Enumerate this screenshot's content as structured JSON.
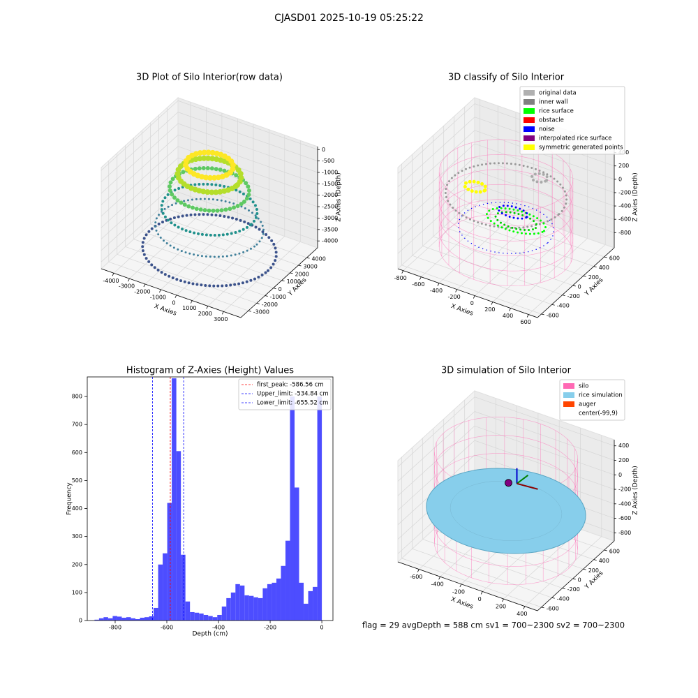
{
  "title": "CJASD01 2025-10-19 05:25:22",
  "chart_data": [
    {
      "type": "scatter3d",
      "title": "3D Plot of Silo Interior(row data)",
      "xlabel": "X Axies",
      "ylabel": "Y Axies",
      "zlabel": "Z Axies (Depth)",
      "xlim": [
        -4800,
        4100
      ],
      "ylim": [
        -3900,
        5300
      ],
      "zlim": [
        -4300,
        130
      ],
      "xticks": [
        -4000,
        -3000,
        -2000,
        -1000,
        0,
        1000,
        2000,
        3000
      ],
      "yticks": [
        -3000,
        -2000,
        -1000,
        0,
        1000,
        2000,
        3000,
        4000
      ],
      "zticks": [
        0,
        -500,
        -1000,
        -1500,
        -2000,
        -2500,
        -3000,
        -3500,
        -4000
      ]
    },
    {
      "type": "scatter3d",
      "title": "3D classify of Silo Interior",
      "xlabel": "X Axies",
      "ylabel": "Y Axies",
      "zlabel": "Z Axies (Depth)",
      "xlim": [
        -860,
        700
      ],
      "ylim": [
        -675,
        790
      ],
      "zlim": [
        -1027,
        490
      ],
      "xticks": [
        -800,
        -600,
        -400,
        -200,
        0,
        200,
        400,
        600
      ],
      "yticks": [
        -600,
        -400,
        -200,
        0,
        200,
        400,
        600
      ],
      "zticks": [
        400,
        200,
        0,
        -200,
        -400,
        -600,
        -800
      ],
      "legend": "upper right",
      "series": [
        {
          "name": "original data",
          "color": "#b0b0b0"
        },
        {
          "name": "inner wall",
          "color": "#808080"
        },
        {
          "name": "rice surface",
          "color": "#00ff00"
        },
        {
          "name": "obstacle",
          "color": "#ff0000"
        },
        {
          "name": "noise",
          "color": "#0000ff"
        },
        {
          "name": "interpolated rice surface",
          "color": "#800080"
        },
        {
          "name": "symmetric generated points",
          "color": "#ffff00"
        }
      ]
    },
    {
      "type": "histogram",
      "title": "Histogram of Z-Axies (Height) Values",
      "xlabel": "Depth (cm)",
      "ylabel": "Frequency",
      "color": "#4d4dff",
      "xlim": [
        -908,
        43
      ],
      "ylim": [
        0,
        870
      ],
      "xticks": [
        -800,
        -600,
        -400,
        -200,
        0
      ],
      "yticks": [
        0,
        100,
        200,
        300,
        400,
        500,
        600,
        700,
        800
      ],
      "bins": [
        -880,
        -862.4,
        -844.8,
        -827.2,
        -809.6,
        -792,
        -774.4,
        -756.8,
        -739.2,
        -721.6,
        -704,
        -686.4,
        -668.8,
        -651.2,
        -633.6,
        -616,
        -598.4,
        -580.8,
        -563.2,
        -545.6,
        -528,
        -510.4,
        -492.8,
        -475.2,
        -457.6,
        -440,
        -422.4,
        -404.8,
        -387.2,
        -369.6,
        -352,
        -334.4,
        -316.8,
        -299.2,
        -281.6,
        -264,
        -246.4,
        -228.8,
        -211.2,
        -193.6,
        -176,
        -158.4,
        -140.8,
        -123.2,
        -105.6,
        -88,
        -70.4,
        -52.8,
        -35.2,
        -17.6,
        0
      ],
      "values": [
        3,
        8,
        12,
        8,
        16,
        14,
        10,
        12,
        8,
        5,
        10,
        12,
        15,
        45,
        200,
        240,
        420,
        865,
        605,
        235,
        68,
        30,
        28,
        25,
        20,
        16,
        12,
        20,
        50,
        80,
        100,
        130,
        125,
        90,
        88,
        83,
        80,
        115,
        130,
        135,
        150,
        195,
        285,
        800,
        475,
        135,
        60,
        105,
        120,
        800
      ],
      "legend": "upper right",
      "lines": [
        {
          "name": "first_peak: -586.56 cm",
          "value": -586.56,
          "color": "#ff0000"
        },
        {
          "name": "Upper_limit: -534.84 cm",
          "value": -534.84,
          "color": "#0000ff"
        },
        {
          "name": "Lower_limit: -655.52 cm",
          "value": -655.52,
          "color": "#0000ff"
        }
      ]
    },
    {
      "type": "scatter3d",
      "title": "3D simulation of Silo Interior",
      "xlabel": "X Axies",
      "ylabel": "Y Axies",
      "zlabel": "Z Axies (Depth)",
      "xlim": [
        -800,
        520
      ],
      "ylim": [
        -675,
        790
      ],
      "zlim": [
        -912,
        484
      ],
      "xticks": [
        -600,
        -400,
        -200,
        0,
        200,
        400
      ],
      "yticks": [
        -600,
        -400,
        -200,
        0,
        200,
        400,
        600
      ],
      "zticks": [
        400,
        200,
        0,
        -200,
        -400,
        -600,
        -800
      ],
      "legend": "upper right",
      "series": [
        {
          "name": "silo",
          "color": "#ff69b4"
        },
        {
          "name": "rice simulation",
          "color": "#87ceeb"
        },
        {
          "name": "auger",
          "color": "#ff4500"
        },
        {
          "name": "center(-99,9)",
          "color": "#ffffff"
        }
      ]
    }
  ],
  "footer": "flag = 29  avgDepth = 588 cm  sv1 = 700~2300  sv2 = 700~2300"
}
